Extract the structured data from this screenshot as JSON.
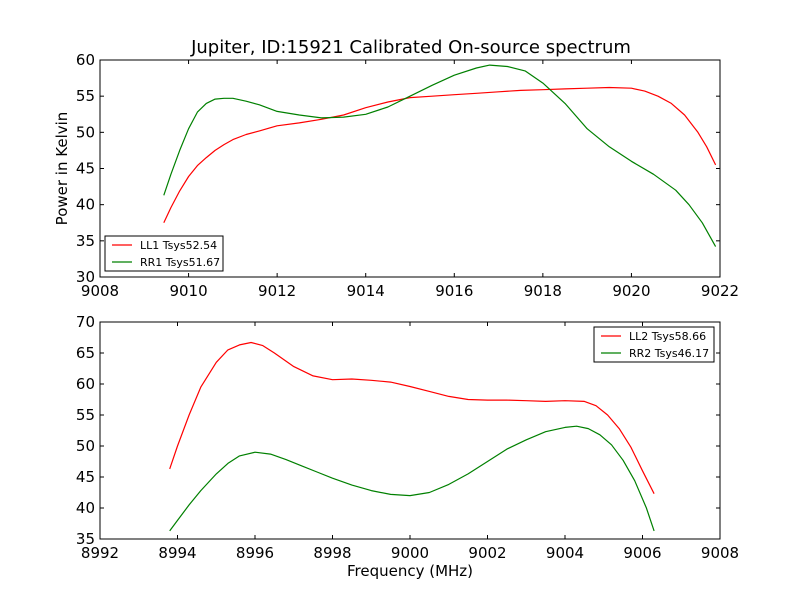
{
  "figure": {
    "title": "Jupiter, ID:15921 Calibrated On-source spectrum"
  },
  "chart_data": [
    {
      "type": "line",
      "title": "Jupiter, ID:15921 Calibrated On-source spectrum",
      "xlabel": "",
      "ylabel": "Power in Kelvin",
      "xlim": [
        9008,
        9022
      ],
      "ylim": [
        30,
        60
      ],
      "xticks": [
        "9008",
        "9010",
        "9012",
        "9014",
        "9016",
        "9018",
        "9020",
        "9022"
      ],
      "yticks": [
        "30",
        "35",
        "40",
        "45",
        "50",
        "55",
        "60"
      ],
      "grid": false,
      "legend_position": "lower-left",
      "series": [
        {
          "name": "LL1 Tsys52.54",
          "color": "#ff0000",
          "x": [
            9009.44,
            9009.6,
            9009.8,
            9010.0,
            9010.2,
            9010.4,
            9010.6,
            9010.8,
            9011.0,
            9011.3,
            9011.6,
            9012.0,
            9012.5,
            9013.0,
            9013.5,
            9014.0,
            9014.5,
            9015.0,
            9015.5,
            9016.0,
            9016.5,
            9017.0,
            9017.5,
            9018.0,
            9018.5,
            9019.0,
            9019.5,
            9020.0,
            9020.3,
            9020.6,
            9020.9,
            9021.2,
            9021.5,
            9021.7,
            9021.9
          ],
          "y": [
            37.5,
            39.6,
            41.9,
            43.9,
            45.4,
            46.5,
            47.5,
            48.3,
            49.0,
            49.7,
            50.2,
            50.9,
            51.3,
            51.8,
            52.4,
            53.4,
            54.2,
            54.8,
            55.0,
            55.2,
            55.4,
            55.6,
            55.8,
            55.9,
            56.0,
            56.1,
            56.2,
            56.1,
            55.7,
            55.0,
            54.0,
            52.4,
            50.0,
            48.0,
            45.5
          ]
        },
        {
          "name": "RR1 Tsys51.67",
          "color": "#008000",
          "x": [
            9009.44,
            9009.6,
            9009.8,
            9010.0,
            9010.2,
            9010.4,
            9010.6,
            9010.8,
            9011.0,
            9011.3,
            9011.6,
            9012.0,
            9012.5,
            9013.0,
            9013.5,
            9014.0,
            9014.5,
            9015.0,
            9015.5,
            9016.0,
            9016.5,
            9016.8,
            9017.2,
            9017.6,
            9018.0,
            9018.5,
            9019.0,
            9019.5,
            9020.0,
            9020.5,
            9021.0,
            9021.3,
            9021.6,
            9021.9
          ],
          "y": [
            41.3,
            44.2,
            47.5,
            50.5,
            52.8,
            54.0,
            54.6,
            54.7,
            54.7,
            54.3,
            53.8,
            52.9,
            52.4,
            52.0,
            52.1,
            52.5,
            53.5,
            55.0,
            56.5,
            57.9,
            58.9,
            59.3,
            59.1,
            58.5,
            56.8,
            54.0,
            50.5,
            48.0,
            46.0,
            44.2,
            42.0,
            40.0,
            37.5,
            34.2
          ]
        }
      ]
    },
    {
      "type": "line",
      "title": "",
      "xlabel": "Frequency (MHz)",
      "ylabel": "",
      "xlim": [
        8992,
        9008
      ],
      "ylim": [
        35,
        70
      ],
      "xticks": [
        "8992",
        "8994",
        "8996",
        "8998",
        "9000",
        "9002",
        "9004",
        "9006",
        "9008"
      ],
      "yticks": [
        "35",
        "40",
        "45",
        "50",
        "55",
        "60",
        "65",
        "70"
      ],
      "grid": false,
      "legend_position": "upper-right",
      "series": [
        {
          "name": "LL2 Tsys58.66",
          "color": "#ff0000",
          "x": [
            8993.8,
            8994.0,
            8994.3,
            8994.6,
            8995.0,
            8995.3,
            8995.6,
            8995.9,
            8996.2,
            8996.5,
            8997.0,
            8997.5,
            8998.0,
            8998.5,
            8999.0,
            8999.5,
            9000.0,
            9000.5,
            9001.0,
            9001.5,
            9002.0,
            9002.5,
            9003.0,
            9003.5,
            9004.0,
            9004.5,
            9004.8,
            9005.1,
            9005.4,
            9005.7,
            9006.0,
            9006.3
          ],
          "y": [
            46.3,
            50.0,
            55.0,
            59.5,
            63.5,
            65.5,
            66.3,
            66.7,
            66.2,
            65.0,
            62.8,
            61.3,
            60.7,
            60.8,
            60.6,
            60.3,
            59.6,
            58.8,
            58.0,
            57.5,
            57.4,
            57.4,
            57.3,
            57.2,
            57.3,
            57.2,
            56.5,
            55.0,
            52.8,
            49.8,
            46.0,
            42.3
          ]
        },
        {
          "name": "RR2 Tsys46.17",
          "color": "#008000",
          "x": [
            8993.8,
            8994.0,
            8994.3,
            8994.6,
            8995.0,
            8995.3,
            8995.6,
            8996.0,
            8996.4,
            8996.8,
            8997.2,
            8997.6,
            8998.0,
            8998.5,
            8999.0,
            8999.5,
            9000.0,
            9000.5,
            9001.0,
            9001.5,
            9002.0,
            9002.5,
            9003.0,
            9003.5,
            9004.0,
            9004.3,
            9004.6,
            9004.9,
            9005.2,
            9005.5,
            9005.8,
            9006.1,
            9006.3
          ],
          "y": [
            36.3,
            38.0,
            40.5,
            42.8,
            45.5,
            47.2,
            48.4,
            49.0,
            48.7,
            47.8,
            46.8,
            45.8,
            44.8,
            43.7,
            42.8,
            42.2,
            42.0,
            42.5,
            43.8,
            45.5,
            47.5,
            49.5,
            51.0,
            52.3,
            53.0,
            53.2,
            52.8,
            51.8,
            50.2,
            47.7,
            44.4,
            40.0,
            36.3
          ]
        }
      ]
    }
  ]
}
